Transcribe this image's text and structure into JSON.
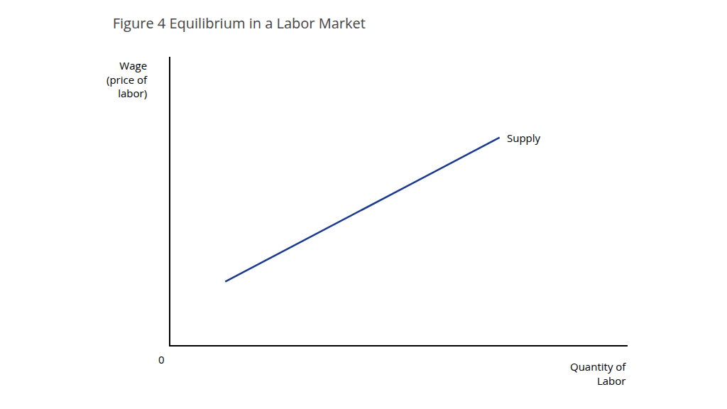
{
  "chart_data": {
    "type": "line",
    "title": "Figure 4 Equilibrium in a Labor Market",
    "xlabel": "Quantity of\nLabor",
    "ylabel": "Wage\n(price of\nlabor)",
    "x": [
      0.12,
      0.72
    ],
    "series": [
      {
        "name": "Supply",
        "color": "#1a3a8f",
        "values": [
          0.22,
          0.72
        ]
      }
    ],
    "xlim": [
      0,
      1
    ],
    "ylim": [
      0,
      1
    ],
    "xticks": [],
    "yticks": [],
    "tick_labels": false,
    "grid": false,
    "annotations": [
      "0"
    ]
  }
}
